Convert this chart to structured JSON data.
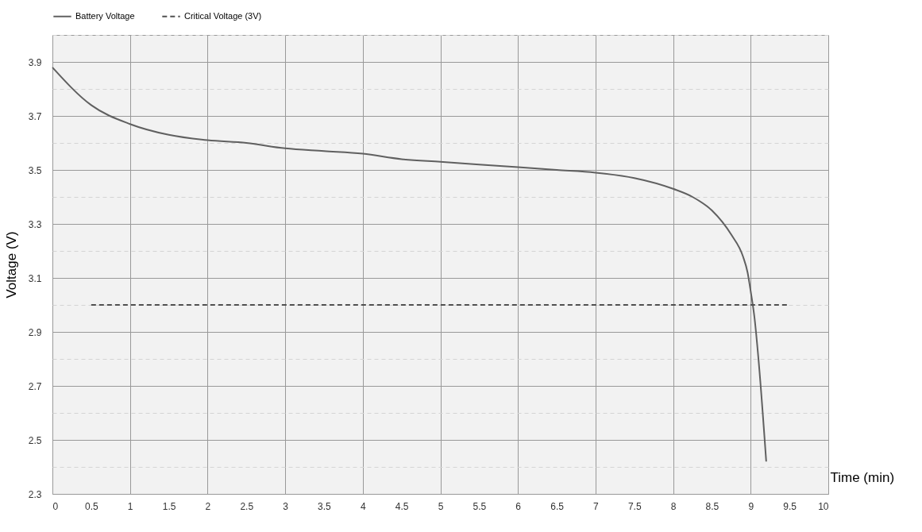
{
  "chart_data": {
    "type": "line",
    "xlabel": "Time (min)",
    "ylabel": "Voltage (V)",
    "xlim": [
      0,
      10
    ],
    "xticks": [
      0,
      0.5,
      1,
      1.5,
      2,
      2.5,
      3,
      3.5,
      4,
      4.5,
      5,
      5.5,
      6,
      6.5,
      7,
      7.5,
      8,
      8.5,
      9,
      9.5,
      10
    ],
    "ylim": [
      2.3,
      4.0
    ],
    "yticks": [
      2.3,
      {
        "value": 2.4,
        "label": null
      },
      2.5,
      {
        "value": 2.6,
        "label": null
      },
      2.7,
      {
        "value": 2.8,
        "label": null
      },
      2.9,
      {
        "value": 3.0,
        "label": null
      },
      3.1,
      {
        "value": 3.2,
        "label": null
      },
      3.3,
      {
        "value": 3.4,
        "label": null
      },
      3.5,
      {
        "value": 3.6,
        "label": null
      },
      3.7,
      {
        "value": 3.8,
        "label": null
      },
      3.9,
      {
        "value": 4.0,
        "label": null
      }
    ],
    "grid": true,
    "legend": "top",
    "series": [
      {
        "name": "Battery Voltage",
        "color": "#606060",
        "line_style": "solid",
        "x": [
          0,
          0.5,
          1,
          1.5,
          2,
          2.5,
          3,
          3.5,
          4,
          4.5,
          5,
          6,
          6.5,
          7,
          7.5,
          8,
          8.25,
          8.5,
          8.75,
          8.9,
          8.96,
          9,
          9.05,
          9.1,
          9.2
        ],
        "values": [
          3.88,
          3.74,
          3.67,
          3.63,
          3.61,
          3.6,
          3.58,
          3.57,
          3.56,
          3.54,
          3.53,
          3.51,
          3.5,
          3.49,
          3.47,
          3.43,
          3.4,
          3.35,
          3.26,
          3.18,
          3.12,
          3.05,
          2.95,
          2.8,
          2.42
        ]
      },
      {
        "name": "Critical Voltage  (3V)",
        "color": "#505050",
        "line_style": "dashed",
        "x": [
          0.5,
          9.5
        ],
        "values": [
          3,
          3
        ]
      }
    ]
  }
}
